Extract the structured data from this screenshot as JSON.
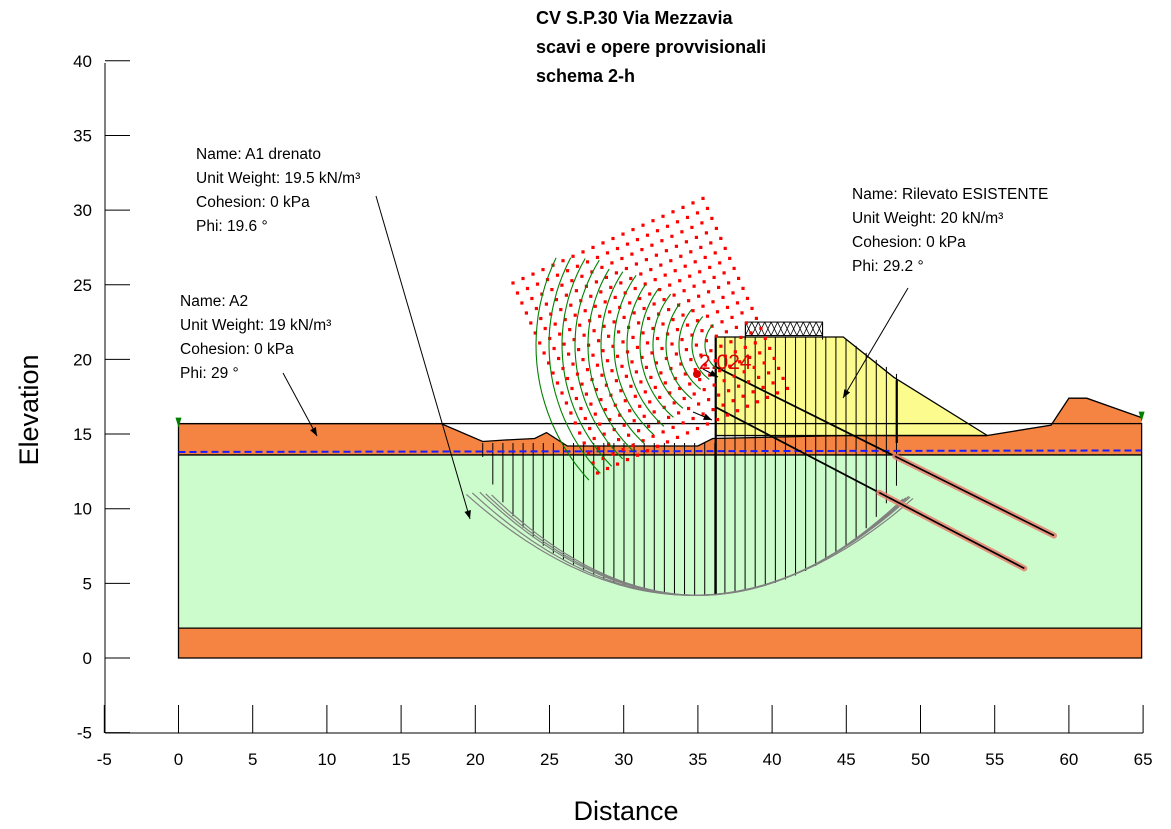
{
  "title": {
    "lines": [
      "CV S.P.30 Via Mezzavia",
      "scavi e opere provvisionali",
      "schema 2-h"
    ]
  },
  "axes": {
    "xlabel": "Distance",
    "ylabel": "Elevation",
    "xlim": [
      -5,
      65
    ],
    "ylim": [
      -5,
      40
    ],
    "xticks": [
      "-5",
      "0",
      "5",
      "10",
      "15",
      "20",
      "25",
      "30",
      "35",
      "40",
      "45",
      "50",
      "55",
      "60",
      "65"
    ],
    "yticks": [
      "-5",
      "0",
      "5",
      "10",
      "15",
      "20",
      "25",
      "30",
      "35",
      "40"
    ]
  },
  "factor_of_safety": "2.024",
  "materials": [
    {
      "id": "a2",
      "lines": [
        "Name: A2",
        "Unit Weight: 19 kN/m³",
        "Cohesion: 0 kPa",
        "Phi: 29 °"
      ],
      "color": "#f58442"
    },
    {
      "id": "a1",
      "lines": [
        "Name: A1 drenato",
        "Unit Weight: 19.5 kN/m³",
        "Cohesion: 0 kPa",
        "Phi: 19.6 °"
      ],
      "color": "#ccfccc"
    },
    {
      "id": "rilevato",
      "lines": [
        "Name: Rilevato ESISTENTE",
        "Unit Weight: 20 kN/m³",
        "Cohesion: 0 kPa",
        "Phi: 29.2 °"
      ],
      "color": "#fcfc8e"
    }
  ],
  "colors": {
    "water_table": "#1a1aff",
    "grid_points": "#ff0000",
    "slip_center": "#dd0000",
    "slip_surface": "#808080",
    "anchor": "#e88070",
    "radius_lines": "#008000"
  }
}
